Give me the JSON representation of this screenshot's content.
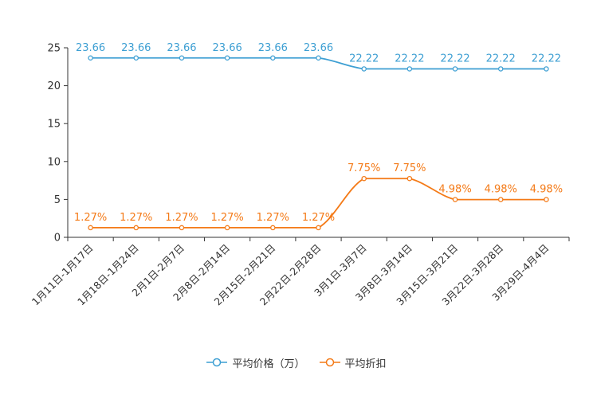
{
  "chart_data": {
    "type": "line",
    "categories": [
      "1月11日-1月17日",
      "1月18日-1月24日",
      "2月1日-2月7日",
      "2月8日-2月14日",
      "2月15日-2月21日",
      "2月22日-2月28日",
      "3月1日-3月7日",
      "3月8日-3月14日",
      "3月15日-3月21日",
      "3月22日-3月28日",
      "3月29日-4月4日"
    ],
    "series": [
      {
        "name": "平均价格（万）",
        "color": "#3d9fd3",
        "values": [
          23.66,
          23.66,
          23.66,
          23.66,
          23.66,
          23.66,
          22.22,
          22.22,
          22.22,
          22.22,
          22.22
        ],
        "labels": [
          "23.66",
          "23.66",
          "23.66",
          "23.66",
          "23.66",
          "23.66",
          "22.22",
          "22.22",
          "22.22",
          "22.22",
          "22.22"
        ]
      },
      {
        "name": "平均折扣",
        "color": "#f47a17",
        "values": [
          1.27,
          1.27,
          1.27,
          1.27,
          1.27,
          1.27,
          7.75,
          7.75,
          4.98,
          4.98,
          4.98
        ],
        "labels": [
          "1.27%",
          "1.27%",
          "1.27%",
          "1.27%",
          "1.27%",
          "1.27%",
          "7.75%",
          "7.75%",
          "4.98%",
          "4.98%",
          "4.98%"
        ]
      }
    ],
    "yticks": [
      "0",
      "5",
      "10",
      "15",
      "20",
      "25"
    ],
    "ylim": [
      0,
      25
    ],
    "legend_position": "bottom-center"
  }
}
